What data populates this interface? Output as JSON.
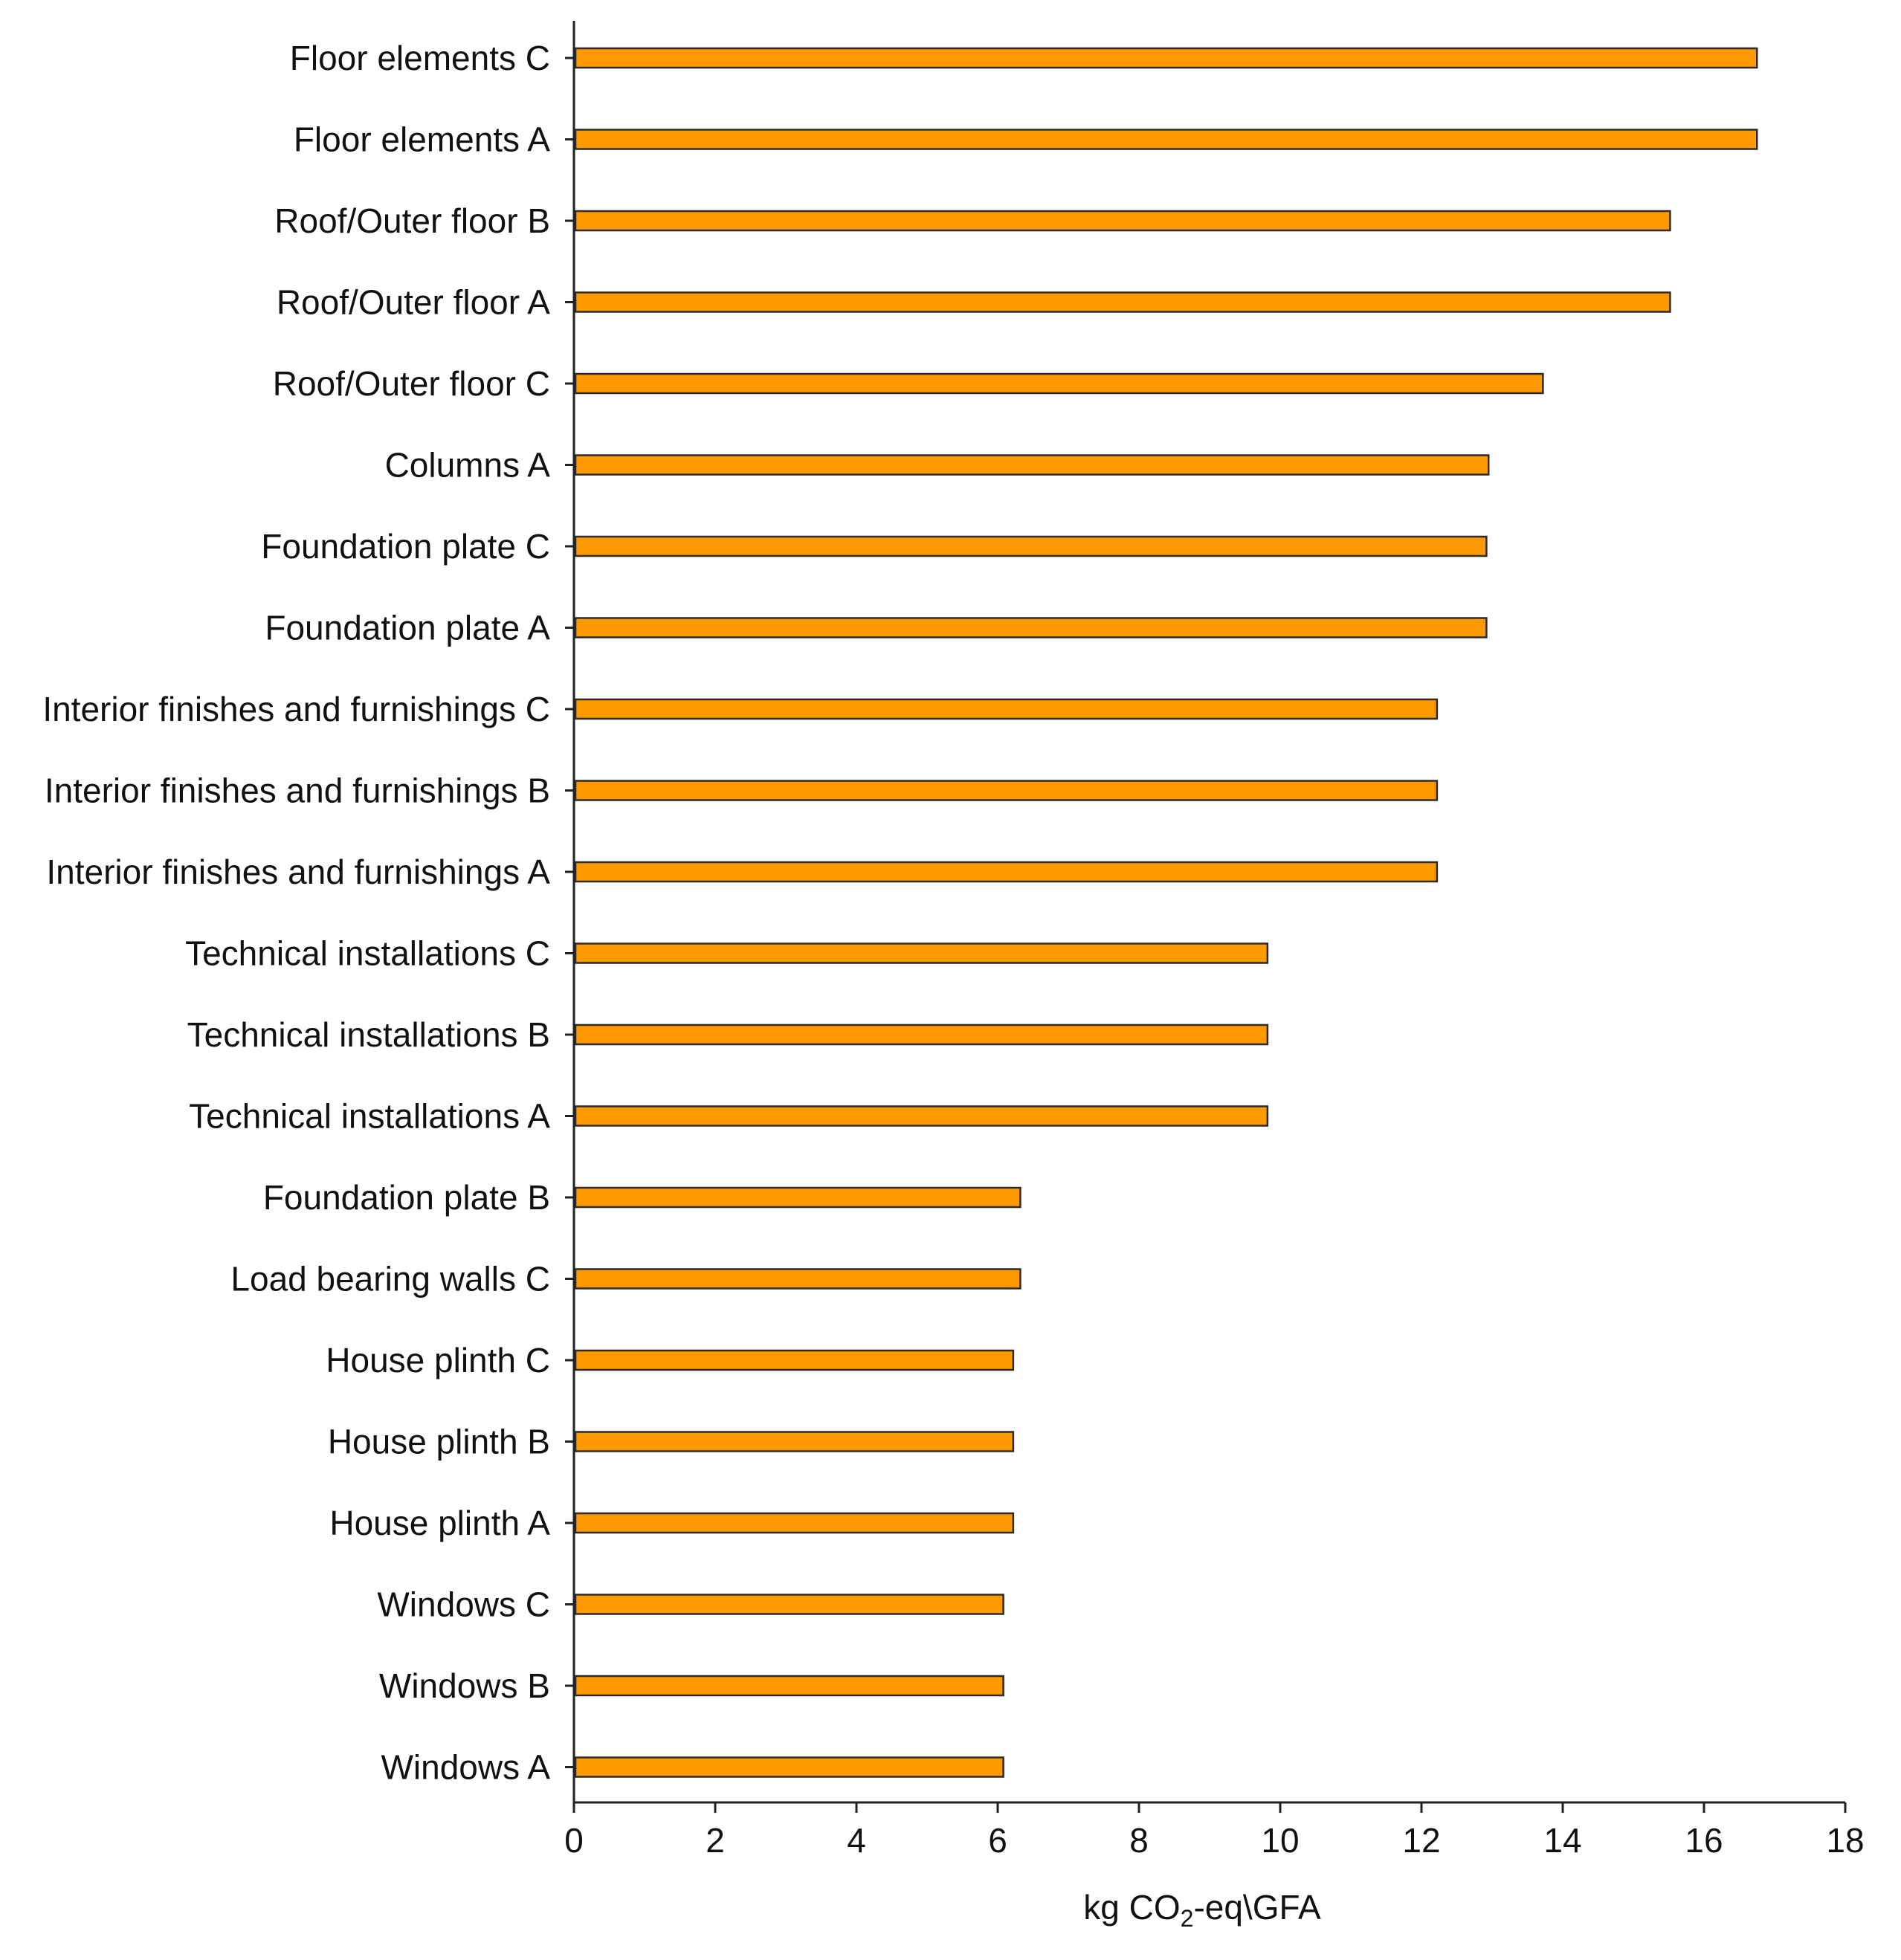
{
  "chart_data": {
    "type": "bar",
    "orientation": "horizontal",
    "categories": [
      "Floor elements C",
      "Floor elements A",
      "Roof/Outer floor B",
      "Roof/Outer floor A",
      "Roof/Outer floor C",
      "Columns A",
      "Foundation plate C",
      "Foundation plate A",
      "Interior finishes and furnishings C",
      "Interior finishes and furnishings B",
      "Interior finishes and furnishings A",
      "Technical installations C",
      "Technical installations B",
      "Technical installations A",
      "Foundation plate B",
      "Load bearing walls C",
      "House plinth C",
      "House plinth B",
      "House plinth A",
      "Windows C",
      "Windows B",
      "Windows A"
    ],
    "values": [
      16.75,
      16.75,
      15.52,
      15.52,
      13.72,
      12.95,
      12.92,
      12.92,
      12.22,
      12.22,
      12.22,
      9.82,
      9.82,
      9.82,
      6.32,
      6.32,
      6.22,
      6.22,
      6.22,
      6.08,
      6.08,
      6.08
    ],
    "xlim": [
      0,
      18
    ],
    "xticks": [
      "0",
      "2",
      "4",
      "6",
      "8",
      "10",
      "12",
      "14",
      "16",
      "18"
    ],
    "xlabel": {
      "prefix": "kg CO",
      "subscript": "2",
      "suffix": "-eq\\GFA"
    },
    "title": "",
    "bar_color": "#FF9900",
    "bar_edge_color": "#2b2b2b",
    "grid": false
  }
}
